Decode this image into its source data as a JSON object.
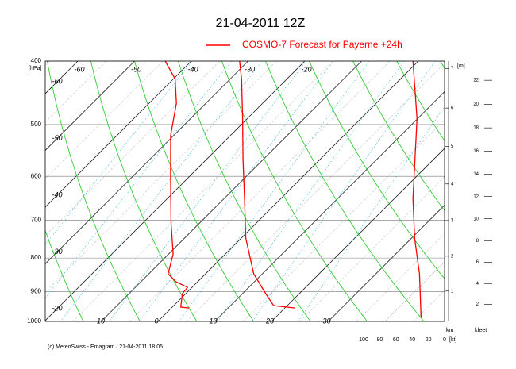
{
  "chart_data": {
    "type": "emagram",
    "title": "21-04-2011  12Z",
    "legend": "COSMO-7 Forecast for Payerne   +24h",
    "footer": "(c) MeteoSwiss - Emagram  /  21-04-2011  18:05",
    "y_label": "[hPa]",
    "log_y": true,
    "ylim": [
      400,
      1000
    ],
    "yticks": [
      400,
      500,
      600,
      700,
      800,
      900,
      1000
    ],
    "xticks": [
      -60,
      -50,
      -40,
      -30,
      -20,
      -10,
      0,
      10,
      20,
      30
    ],
    "color": "#ff0000",
    "temperature": {
      "pressure": [
        954,
        946,
        907,
        846,
        746,
        649,
        564,
        490,
        426,
        400
      ],
      "values": [
        21.8,
        17.6,
        14.1,
        8.5,
        0.8,
        -6.4,
        -13.7,
        -20.8,
        -28.0,
        -31.5
      ]
    },
    "dewpoint": {
      "pressure": [
        954,
        951,
        907,
        887,
        870,
        846,
        789,
        705,
        597,
        519,
        464,
        426,
        400
      ],
      "values": [
        3.1,
        1.5,
        -0.6,
        -0.8,
        -3.8,
        -6.6,
        -9.2,
        -15.2,
        -23.6,
        -30.6,
        -35.2,
        -39.7,
        -44.6
      ]
    },
    "wind": {
      "pressure": [
        400,
        490,
        649,
        746,
        846,
        987
      ],
      "values": [
        39,
        34,
        39,
        37,
        31,
        29
      ]
    },
    "height_m": {
      "label": "[m]",
      "unit_label": "km",
      "ticks": [
        1,
        2,
        3,
        4,
        5,
        6,
        7
      ]
    },
    "height_kfeet": {
      "label": "kfeet",
      "ticks": [
        2,
        4,
        6,
        8,
        10,
        12,
        14,
        16,
        18,
        20,
        22
      ]
    },
    "wind_axis": {
      "label": "[kt]",
      "ticks": [
        100,
        80,
        60,
        40,
        20,
        0
      ]
    }
  }
}
